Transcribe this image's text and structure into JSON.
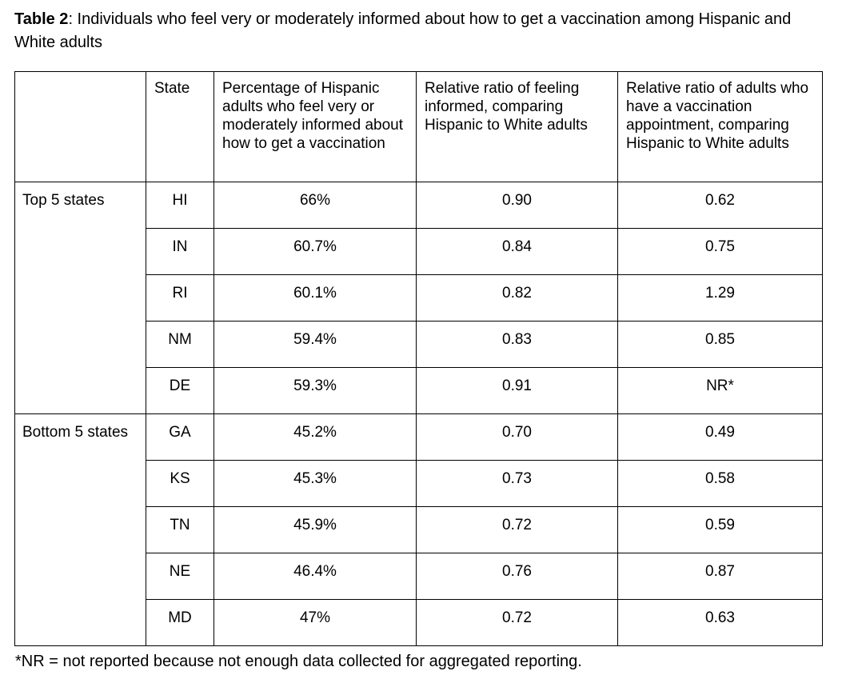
{
  "page": {
    "title_bold": "Table 2",
    "title_rest": ": Individuals who feel very or moderately informed about how to get a vaccination among Hispanic and White adults",
    "footnote": "*NR = not reported because not enough data collected for aggregated reporting."
  },
  "table": {
    "headers": {
      "group": "",
      "state": "State",
      "percentage": "Percentage of Hispanic adults who feel very or moderately informed about how to get a vaccination",
      "ratio_informed": "Relative ratio of feeling informed, comparing Hispanic to White adults",
      "ratio_appointment": "Relative ratio of adults who have a vaccination appointment, comparing Hispanic to White adults"
    },
    "groups": [
      {
        "label": "Top 5 states",
        "rows": [
          {
            "state": "HI",
            "percentage": "66%",
            "ratio_informed": "0.90",
            "ratio_appointment": "0.62"
          },
          {
            "state": "IN",
            "percentage": "60.7%",
            "ratio_informed": "0.84",
            "ratio_appointment": "0.75"
          },
          {
            "state": "RI",
            "percentage": "60.1%",
            "ratio_informed": "0.82",
            "ratio_appointment": "1.29"
          },
          {
            "state": "NM",
            "percentage": "59.4%",
            "ratio_informed": "0.83",
            "ratio_appointment": "0.85"
          },
          {
            "state": "DE",
            "percentage": "59.3%",
            "ratio_informed": "0.91",
            "ratio_appointment": "NR*"
          }
        ]
      },
      {
        "label": "Bottom 5 states",
        "rows": [
          {
            "state": "GA",
            "percentage": "45.2%",
            "ratio_informed": "0.70",
            "ratio_appointment": "0.49"
          },
          {
            "state": "KS",
            "percentage": "45.3%",
            "ratio_informed": "0.73",
            "ratio_appointment": "0.58"
          },
          {
            "state": "TN",
            "percentage": "45.9%",
            "ratio_informed": "0.72",
            "ratio_appointment": "0.59"
          },
          {
            "state": "NE",
            "percentage": "46.4%",
            "ratio_informed": "0.76",
            "ratio_appointment": "0.87"
          },
          {
            "state": "MD",
            "percentage": "47%",
            "ratio_informed": "0.72",
            "ratio_appointment": "0.63"
          }
        ]
      }
    ]
  }
}
